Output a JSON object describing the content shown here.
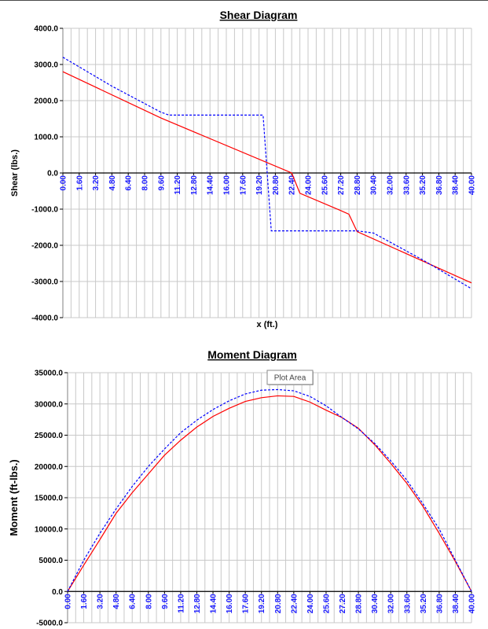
{
  "chart_data": [
    {
      "type": "line",
      "title": "Shear Diagram",
      "xlabel": "x (ft.)",
      "ylabel": "Shear (lbs.)",
      "xlim": [
        0,
        40
      ],
      "ylim": [
        -4000,
        4000
      ],
      "y_ticks": [
        "4000.0",
        "3000.0",
        "2000.0",
        "1000.0",
        "0.0",
        "-1000.0",
        "-2000.0",
        "-3000.0",
        "-4000.0"
      ],
      "x_ticks": [
        "0.00",
        "1.60",
        "3.20",
        "4.80",
        "6.40",
        "8.00",
        "9.60",
        "11.20",
        "12.80",
        "14.40",
        "16.00",
        "17.60",
        "19.20",
        "20.80",
        "22.40",
        "24.00",
        "25.60",
        "27.20",
        "28.80",
        "30.40",
        "32.00",
        "33.60",
        "35.20",
        "36.80",
        "38.40",
        "40.00"
      ],
      "grid": true,
      "legend": "none",
      "series": [
        {
          "color": "#ff0000",
          "style": "solid",
          "x": [
            0,
            9.6,
            22.4,
            23.2,
            27.2,
            28.0,
            28.8,
            40.0
          ],
          "y": [
            2800,
            1520,
            0,
            -560,
            -1040,
            -1140,
            -1620,
            -3040
          ]
        },
        {
          "color": "#0000ff",
          "style": "dashed",
          "x": [
            0,
            4.8,
            9.6,
            10.4,
            19.2,
            19.6,
            20.0,
            20.4,
            28.8,
            30.4,
            35.2,
            40.0
          ],
          "y": [
            3200,
            2400,
            1680,
            1600,
            1600,
            1600,
            0,
            -1600,
            -1600,
            -1660,
            -2400,
            -3200
          ]
        }
      ]
    },
    {
      "type": "line",
      "title": "Moment Diagram",
      "xlabel": "",
      "ylabel": "Moment (ft-lbs.)",
      "xlim": [
        0,
        40
      ],
      "ylim": [
        -5000,
        35000
      ],
      "y_ticks": [
        "35000.0",
        "30000.0",
        "25000.0",
        "20000.0",
        "15000.0",
        "10000.0",
        "5000.0",
        "0.0",
        "-5000.0"
      ],
      "x_ticks": [
        "0.00",
        "1.60",
        "3.20",
        "4.80",
        "6.40",
        "8.00",
        "9.60",
        "11.20",
        "12.80",
        "14.40",
        "16.00",
        "17.60",
        "19.20",
        "20.80",
        "22.40",
        "24.00",
        "25.60",
        "27.20",
        "28.80",
        "30.40",
        "32.00",
        "33.60",
        "35.20",
        "36.80",
        "38.40",
        "40.00"
      ],
      "grid": true,
      "legend": "none",
      "tooltip": "Plot Area",
      "series": [
        {
          "color": "#ff0000",
          "style": "solid",
          "x": [
            0,
            1.6,
            3.2,
            4.8,
            6.4,
            8.0,
            9.6,
            11.2,
            12.8,
            14.4,
            16.0,
            17.6,
            19.2,
            20.8,
            22.4,
            24.0,
            25.6,
            27.2,
            28.8,
            30.4,
            32.0,
            33.6,
            35.2,
            36.8,
            38.4,
            40.0
          ],
          "y": [
            0,
            4200,
            8300,
            12500,
            15800,
            18800,
            21800,
            24200,
            26300,
            28000,
            29300,
            30400,
            31000,
            31300,
            31200,
            30300,
            29000,
            27800,
            26100,
            23500,
            20500,
            17300,
            13600,
            9300,
            4800,
            0
          ]
        },
        {
          "color": "#0000ff",
          "style": "dashed",
          "x": [
            0,
            1.6,
            3.2,
            4.8,
            6.4,
            8.0,
            9.6,
            11.2,
            12.8,
            14.4,
            16.0,
            17.6,
            19.2,
            20.8,
            22.4,
            24.0,
            25.6,
            27.2,
            28.8,
            30.4,
            32.0,
            33.6,
            35.2,
            36.8,
            38.4,
            40.0
          ],
          "y": [
            0,
            5000,
            9300,
            13200,
            16800,
            20000,
            22800,
            25400,
            27400,
            29100,
            30500,
            31600,
            32200,
            32300,
            32100,
            31200,
            29700,
            27800,
            26000,
            23700,
            20900,
            17800,
            14000,
            10000,
            5000,
            0
          ]
        }
      ]
    }
  ]
}
